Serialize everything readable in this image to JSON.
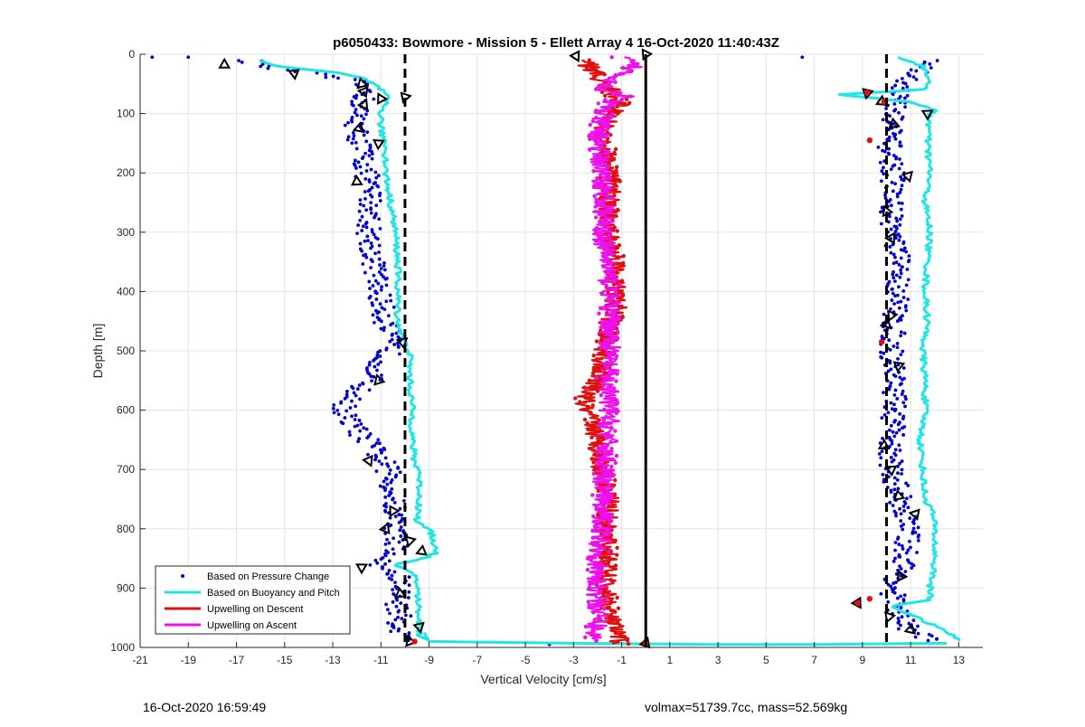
{
  "chart_data": {
    "type": "scatter",
    "title": "p6050433: Bowmore - Mission 5 - Ellett Array 4 16-Oct-2020 11:40:43Z",
    "xlabel": "Vertical Velocity [cm/s]",
    "ylabel": "Depth [m]",
    "xlim": [
      -21,
      14
    ],
    "ylim": [
      0,
      1000
    ],
    "y_reversed": true,
    "grid": true,
    "legend_position": "bottom-left",
    "xticks": [
      -21,
      -19,
      -17,
      -15,
      -13,
      -11,
      -9,
      -7,
      -5,
      -3,
      -1,
      1,
      3,
      5,
      7,
      9,
      11,
      13
    ],
    "yticks": [
      0,
      100,
      200,
      300,
      400,
      500,
      600,
      700,
      800,
      900,
      1000
    ],
    "reference_lines": [
      {
        "x": -10,
        "style": "dashed",
        "color": "#000000"
      },
      {
        "x": 0,
        "style": "solid",
        "color": "#000000"
      },
      {
        "x": 10,
        "style": "dashed",
        "color": "#000000"
      }
    ],
    "series": [
      {
        "name": "Based on Pressure Change",
        "kind": "points",
        "color": "#0000cc",
        "groups": [
          {
            "depth": [
              10,
              20,
              30,
              45,
              60,
              80,
              100,
              130,
              160,
              200,
              250,
              300,
              350,
              400,
              450,
              500,
              550,
              580,
              600,
              620,
              650,
              680,
              700,
              750,
              800,
              830,
              860,
              880,
              900,
              930,
              960,
              980,
              990
            ],
            "x": [
              -16.5,
              -16,
              -14.3,
              -12.2,
              -11.5,
              -11.8,
              -12,
              -12,
              -11.8,
              -11.6,
              -11.4,
              -11.5,
              -11.3,
              -11.1,
              -10.8,
              -10.6,
              -11.5,
              -12.3,
              -12.6,
              -12.3,
              -11.6,
              -11,
              -10.7,
              -10.5,
              -10.4,
              -10.3,
              -11.2,
              -10.3,
              -10.2,
              -10.3,
              -10.2,
              -10.2,
              -9.6
            ]
          },
          {
            "depth": [
              10,
              30,
              50,
              70,
              90,
              120,
              150,
              200,
              250,
              300,
              350,
              400,
              450,
              500,
              550,
              600,
              650,
              700,
              750,
              800,
              850,
              880,
              900,
              930,
              950,
              970,
              990
            ],
            "x": [
              12,
              11.2,
              10.8,
              10.5,
              10.3,
              10.2,
              10.1,
              10.3,
              10.2,
              10.3,
              10.5,
              10.5,
              10.3,
              10.2,
              10.4,
              10.3,
              10.2,
              10.2,
              10.6,
              10.9,
              10.8,
              10.5,
              10.2,
              10.4,
              10.6,
              10.9,
              12.2
            ]
          }
        ],
        "outliers": [
          {
            "x": -20.5,
            "y": 5
          },
          {
            "x": -19,
            "y": 5
          },
          {
            "x": 6.5,
            "y": 5
          },
          {
            "x": -4,
            "y": 995
          },
          {
            "x": 3,
            "y": 995
          },
          {
            "x": 5,
            "y": 995
          },
          {
            "x": 7,
            "y": 995
          }
        ]
      },
      {
        "name": "Based on Buoyancy and Pitch",
        "kind": "line",
        "color": "#22e5e5",
        "groups": [
          {
            "depth": [
              10,
              20,
              30,
              40,
              50,
              60,
              70,
              80,
              100,
              130,
              150,
              200,
              250,
              300,
              350,
              400,
              450,
              490,
              500,
              550,
              600,
              650,
              690,
              700,
              750,
              790,
              800,
              820,
              840,
              850,
              860,
              880,
              900,
              950,
              980,
              990
            ],
            "x": [
              -16,
              -15.5,
              -13,
              -11.8,
              -11.3,
              -11,
              -10.8,
              -10.8,
              -11,
              -11,
              -10.8,
              -10.8,
              -10.6,
              -10.4,
              -10.3,
              -10.3,
              -10.3,
              -10,
              -9.8,
              -9.8,
              -9.7,
              -9.7,
              -9.6,
              -9.4,
              -9.4,
              -9.5,
              -9,
              -8.8,
              -8.7,
              -9.2,
              -10.5,
              -9.5,
              -9.5,
              -9.4,
              -9.4,
              -9
            ]
          },
          {
            "depth": [
              5,
              20,
              40,
              60,
              68,
              80,
              95,
              100,
              150,
              200,
              250,
              300,
              350,
              400,
              450,
              500,
              550,
              600,
              650,
              700,
              750,
              770,
              800,
              850,
              880,
              900,
              920,
              930,
              960,
              980,
              990
            ],
            "x": [
              10.5,
              11.5,
              11.8,
              11.5,
              8,
              11,
              12,
              11.8,
              11.7,
              11.8,
              11.6,
              11.8,
              11.7,
              11.6,
              11.7,
              11.5,
              11.6,
              11.6,
              11.4,
              11.5,
              11.6,
              11.9,
              12,
              12,
              11.9,
              11.8,
              11.8,
              10.2,
              11.8,
              12.8,
              13
            ]
          },
          {
            "depth": [
              975,
              990,
              993,
              995,
              995,
              993
            ],
            "x": [
              -9.2,
              -9,
              -3,
              3,
              7,
              12.5
            ]
          }
        ]
      },
      {
        "name": "Upwelling on Descent",
        "kind": "line",
        "color": "#e01010",
        "groups": [
          {
            "depth": [
              10,
              40,
              80,
              100,
              130,
              200,
              250,
              300,
              350,
              400,
              440,
              450,
              480,
              500,
              550,
              580,
              600,
              620,
              650,
              700,
              750,
              800,
              850,
              900,
              950,
              980,
              995
            ],
            "x": [
              -2.5,
              -2,
              -1,
              -1.5,
              -1.8,
              -1.5,
              -1.5,
              -1.6,
              -1.2,
              -1.3,
              -1.2,
              -1.5,
              -1.6,
              -1.7,
              -2,
              -2.5,
              -2.6,
              -2.2,
              -2,
              -1.8,
              -1.5,
              -1.7,
              -1.6,
              -1.7,
              -1.5,
              -1.2,
              -1
            ]
          }
        ]
      },
      {
        "name": "Upwelling on Ascent",
        "kind": "line",
        "color": "#ee10ee",
        "groups": [
          {
            "depth": [
              5,
              20,
              40,
              60,
              70,
              80,
              100,
              150,
              200,
              250,
              300,
              350,
              400,
              450,
              500,
              550,
              600,
              650,
              700,
              750,
              800,
              850,
              880,
              900,
              950,
              990
            ],
            "x": [
              -1,
              -0.5,
              -1.2,
              -1.8,
              -0.8,
              -1.5,
              -1.8,
              -2,
              -1.8,
              -1.7,
              -1.8,
              -1.6,
              -1.5,
              -1.5,
              -1.5,
              -1.6,
              -1.5,
              -1.6,
              -1.7,
              -1.8,
              -1.8,
              -2,
              -2.1,
              -2,
              -2,
              -2.2
            ]
          }
        ]
      },
      {
        "name": "Markers",
        "kind": "triangles",
        "color": "#000000",
        "points": [
          {
            "x": -17.5,
            "y": 18
          },
          {
            "x": -14.6,
            "y": 32
          },
          {
            "x": -11.8,
            "y": 50
          },
          {
            "x": -11.7,
            "y": 63
          },
          {
            "x": -11,
            "y": 75
          },
          {
            "x": -11.7,
            "y": 85
          },
          {
            "x": -10,
            "y": 72
          },
          {
            "x": -11.9,
            "y": 125
          },
          {
            "x": -11.1,
            "y": 150
          },
          {
            "x": -12,
            "y": 215
          },
          {
            "x": -10.1,
            "y": 485
          },
          {
            "x": -11.1,
            "y": 550
          },
          {
            "x": -11.5,
            "y": 685
          },
          {
            "x": -10.5,
            "y": 770
          },
          {
            "x": -10.8,
            "y": 800
          },
          {
            "x": -9.8,
            "y": 820
          },
          {
            "x": -9.3,
            "y": 838
          },
          {
            "x": -11.8,
            "y": 865
          },
          {
            "x": -10.2,
            "y": 910
          },
          {
            "x": -9.4,
            "y": 965
          },
          {
            "x": -9.8,
            "y": 990
          },
          {
            "x": -2.9,
            "y": 3
          },
          {
            "x": 0,
            "y": 0
          },
          {
            "x": 0,
            "y": 993
          },
          {
            "x": 9.2,
            "y": 65
          },
          {
            "x": 9.8,
            "y": 80
          },
          {
            "x": 11.7,
            "y": 100
          },
          {
            "x": 10.3,
            "y": 118
          },
          {
            "x": 10.9,
            "y": 205
          },
          {
            "x": 10,
            "y": 265
          },
          {
            "x": 10.2,
            "y": 310
          },
          {
            "x": 10.2,
            "y": 440
          },
          {
            "x": 10,
            "y": 455
          },
          {
            "x": 10.5,
            "y": 525
          },
          {
            "x": 9.9,
            "y": 660
          },
          {
            "x": 10.2,
            "y": 700
          },
          {
            "x": 10.5,
            "y": 745
          },
          {
            "x": 11.2,
            "y": 775
          },
          {
            "x": 10.6,
            "y": 880
          },
          {
            "x": 8.8,
            "y": 925
          },
          {
            "x": 10.1,
            "y": 948
          },
          {
            "x": 11,
            "y": 970
          }
        ]
      }
    ],
    "red_dots": [
      {
        "x": -9.6,
        "y": 990
      },
      {
        "x": 9.2,
        "y": 65
      },
      {
        "x": 9.9,
        "y": 80
      },
      {
        "x": 9.3,
        "y": 145
      },
      {
        "x": 9.8,
        "y": 485
      },
      {
        "x": 9.3,
        "y": 918
      },
      {
        "x": 8.8,
        "y": 925
      },
      {
        "x": 0,
        "y": 993
      }
    ]
  },
  "footer": {
    "left": "16-Oct-2020 16:59:49",
    "right": "volmax=51739.7cc, mass=52.569kg"
  }
}
